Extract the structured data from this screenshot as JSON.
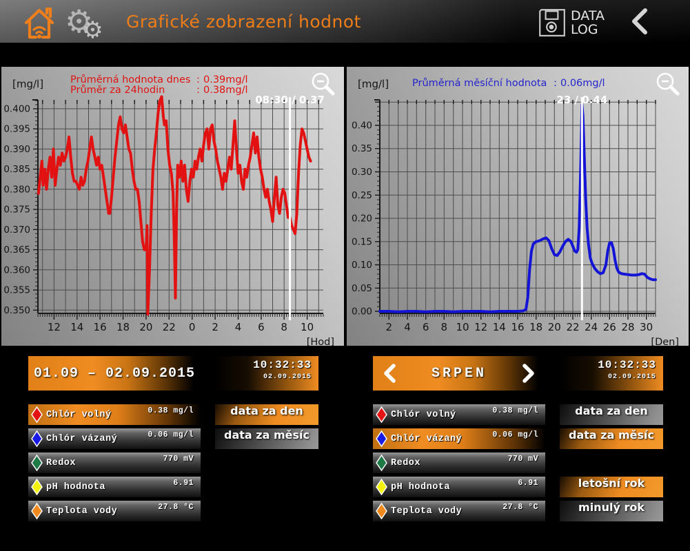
{
  "header": {
    "title": "Grafické zobrazení hodnot",
    "datalog_line1": "DATA",
    "datalog_line2": "LOG"
  },
  "colors": {
    "accent_orange": "#ef8c22",
    "daily_line": "#e31212",
    "monthly_line": "#1414d6"
  },
  "chart_data": [
    {
      "type": "line",
      "name": "daily-chlorine",
      "line_color": "#e31212",
      "annotation_color": "#e01313",
      "annotations": [
        {
          "label": "Průměrná hodnota dnes",
          "sep": ":",
          "value": "0.39mg/l"
        },
        {
          "label": "Průměr za 24hodin",
          "sep": ":",
          "value": "0.38mg/l"
        }
      ],
      "y_unit": "[mg/l]",
      "x_unit": "[Hod]",
      "xlim": [
        10.6,
        35.4
      ],
      "ylim": [
        0.3492,
        0.4022
      ],
      "xgrid_step": 1,
      "xminor": 0.2,
      "yminor": 0.001,
      "xticks": [
        [
          12,
          "12"
        ],
        [
          14,
          "14"
        ],
        [
          16,
          "16"
        ],
        [
          18,
          "18"
        ],
        [
          20,
          "20"
        ],
        [
          22,
          "22"
        ],
        [
          24,
          "0"
        ],
        [
          26,
          "2"
        ],
        [
          28,
          "4"
        ],
        [
          30,
          "6"
        ],
        [
          32,
          "8"
        ],
        [
          34,
          "10"
        ]
      ],
      "yticks": [
        [
          0.35,
          "0.350"
        ],
        [
          0.355,
          "0.355"
        ],
        [
          0.36,
          "0.360"
        ],
        [
          0.365,
          "0.365"
        ],
        [
          0.37,
          "0.370"
        ],
        [
          0.375,
          "0.375"
        ],
        [
          0.38,
          "0.380"
        ],
        [
          0.385,
          "0.385"
        ],
        [
          0.39,
          "0.390"
        ],
        [
          0.395,
          "0.395"
        ],
        [
          0.4,
          "0.400"
        ]
      ],
      "cursor": {
        "x": 32.5,
        "label": "08:30 / 0.37"
      },
      "marker": {
        "x": 20.15,
        "color": "#e31212"
      },
      "points": [
        [
          10.65,
          0.379
        ],
        [
          10.8,
          0.383
        ],
        [
          10.95,
          0.387
        ],
        [
          11.05,
          0.381
        ],
        [
          11.2,
          0.385
        ],
        [
          11.35,
          0.38
        ],
        [
          11.5,
          0.385
        ],
        [
          11.65,
          0.388
        ],
        [
          11.8,
          0.383
        ],
        [
          11.95,
          0.39
        ],
        [
          12.1,
          0.381
        ],
        [
          12.25,
          0.385
        ],
        [
          12.4,
          0.388
        ],
        [
          12.55,
          0.386
        ],
        [
          12.7,
          0.389
        ],
        [
          12.85,
          0.387
        ],
        [
          13.0,
          0.388
        ],
        [
          13.15,
          0.39
        ],
        [
          13.3,
          0.393
        ],
        [
          13.45,
          0.388
        ],
        [
          13.6,
          0.384
        ],
        [
          13.75,
          0.382
        ],
        [
          13.9,
          0.382
        ],
        [
          14.05,
          0.381
        ],
        [
          14.2,
          0.38
        ],
        [
          14.35,
          0.383
        ],
        [
          14.5,
          0.381
        ],
        [
          14.65,
          0.382
        ],
        [
          14.8,
          0.385
        ],
        [
          14.95,
          0.387
        ],
        [
          15.1,
          0.39
        ],
        [
          15.25,
          0.393
        ],
        [
          15.4,
          0.39
        ],
        [
          15.55,
          0.388
        ],
        [
          15.7,
          0.386
        ],
        [
          15.85,
          0.388
        ],
        [
          16.0,
          0.385
        ],
        [
          16.15,
          0.386
        ],
        [
          16.3,
          0.383
        ],
        [
          16.45,
          0.38
        ],
        [
          16.6,
          0.377
        ],
        [
          16.75,
          0.374
        ],
        [
          16.85,
          0.374
        ],
        [
          17.0,
          0.378
        ],
        [
          17.15,
          0.383
        ],
        [
          17.3,
          0.388
        ],
        [
          17.45,
          0.392
        ],
        [
          17.6,
          0.396
        ],
        [
          17.75,
          0.398
        ],
        [
          17.9,
          0.395
        ],
        [
          18.05,
          0.394
        ],
        [
          18.2,
          0.396
        ],
        [
          18.35,
          0.393
        ],
        [
          18.5,
          0.39
        ],
        [
          18.65,
          0.389
        ],
        [
          18.8,
          0.385
        ],
        [
          18.95,
          0.382
        ],
        [
          19.1,
          0.38
        ],
        [
          19.25,
          0.38
        ],
        [
          19.4,
          0.377
        ],
        [
          19.55,
          0.372
        ],
        [
          19.7,
          0.367
        ],
        [
          19.85,
          0.365
        ],
        [
          20.0,
          0.365
        ],
        [
          20.08,
          0.371
        ],
        [
          20.15,
          0.349
        ],
        [
          20.3,
          0.36
        ],
        [
          20.45,
          0.374
        ],
        [
          20.6,
          0.385
        ],
        [
          20.75,
          0.39
        ],
        [
          20.9,
          0.394
        ],
        [
          21.05,
          0.399
        ],
        [
          21.2,
          0.402
        ],
        [
          21.35,
          0.403
        ],
        [
          21.5,
          0.398
        ],
        [
          21.6,
          0.396
        ],
        [
          21.75,
          0.397
        ],
        [
          21.9,
          0.39
        ],
        [
          22.05,
          0.386
        ],
        [
          22.2,
          0.384
        ],
        [
          22.35,
          0.379
        ],
        [
          22.45,
          0.368
        ],
        [
          22.55,
          0.353
        ],
        [
          22.65,
          0.375
        ],
        [
          22.75,
          0.386
        ],
        [
          22.9,
          0.383
        ],
        [
          23.05,
          0.387
        ],
        [
          23.2,
          0.382
        ],
        [
          23.35,
          0.386
        ],
        [
          23.5,
          0.38
        ],
        [
          23.65,
          0.377
        ],
        [
          23.8,
          0.382
        ],
        [
          23.95,
          0.385
        ],
        [
          24.1,
          0.383
        ],
        [
          24.25,
          0.387
        ],
        [
          24.4,
          0.385
        ],
        [
          24.55,
          0.388
        ],
        [
          24.7,
          0.39
        ],
        [
          24.85,
          0.387
        ],
        [
          25.0,
          0.391
        ],
        [
          25.15,
          0.394
        ],
        [
          25.3,
          0.395
        ],
        [
          25.45,
          0.39
        ],
        [
          25.6,
          0.395
        ],
        [
          25.75,
          0.396
        ],
        [
          25.9,
          0.392
        ],
        [
          26.05,
          0.39
        ],
        [
          26.2,
          0.387
        ],
        [
          26.35,
          0.385
        ],
        [
          26.5,
          0.383
        ],
        [
          26.65,
          0.38
        ],
        [
          26.8,
          0.384
        ],
        [
          26.95,
          0.382
        ],
        [
          27.1,
          0.385
        ],
        [
          27.25,
          0.388
        ],
        [
          27.4,
          0.385
        ],
        [
          27.55,
          0.391
        ],
        [
          27.7,
          0.397
        ],
        [
          27.85,
          0.39
        ],
        [
          28.0,
          0.384
        ],
        [
          28.15,
          0.386
        ],
        [
          28.3,
          0.382
        ],
        [
          28.45,
          0.38
        ],
        [
          28.6,
          0.385
        ],
        [
          28.75,
          0.383
        ],
        [
          28.9,
          0.386
        ],
        [
          29.05,
          0.388
        ],
        [
          29.2,
          0.391
        ],
        [
          29.35,
          0.394
        ],
        [
          29.5,
          0.389
        ],
        [
          29.65,
          0.393
        ],
        [
          29.8,
          0.388
        ],
        [
          29.95,
          0.385
        ],
        [
          30.1,
          0.383
        ],
        [
          30.25,
          0.38
        ],
        [
          30.4,
          0.378
        ],
        [
          30.55,
          0.38
        ],
        [
          30.7,
          0.377
        ],
        [
          30.85,
          0.375
        ],
        [
          31.0,
          0.372
        ],
        [
          31.15,
          0.378
        ],
        [
          31.3,
          0.383
        ],
        [
          31.45,
          0.376
        ],
        [
          31.6,
          0.374
        ],
        [
          31.75,
          0.378
        ],
        [
          31.9,
          0.38
        ],
        [
          32.05,
          0.379
        ],
        [
          32.2,
          0.376
        ],
        [
          32.35,
          0.373
        ],
        [
          32.5,
          0.373
        ],
        [
          32.65,
          0.371
        ],
        [
          32.8,
          0.37
        ],
        [
          32.95,
          0.369
        ],
        [
          33.1,
          0.374
        ],
        [
          33.25,
          0.384
        ],
        [
          33.4,
          0.391
        ],
        [
          33.55,
          0.395
        ],
        [
          33.7,
          0.394
        ],
        [
          33.85,
          0.392
        ],
        [
          34.0,
          0.39
        ],
        [
          34.15,
          0.388
        ],
        [
          34.3,
          0.387
        ]
      ]
    },
    {
      "type": "line",
      "name": "monthly-chlorine",
      "line_color": "#1414d6",
      "annotation_color": "#2424cc",
      "annotations": [
        {
          "label": "Průměrná měsíční hodnota",
          "sep": ":",
          "value": "0.06mg/l"
        }
      ],
      "y_unit": "[mg/l]",
      "x_unit": "[Den]",
      "xlim": [
        1,
        31
      ],
      "ylim": [
        -0.0044,
        0.4548
      ],
      "xgrid_step": 1,
      "xminor": 0.25,
      "yminor": 0.01,
      "xticks": [
        [
          2,
          "2"
        ],
        [
          4,
          "4"
        ],
        [
          6,
          "6"
        ],
        [
          8,
          "8"
        ],
        [
          10,
          "10"
        ],
        [
          12,
          "12"
        ],
        [
          14,
          "14"
        ],
        [
          16,
          "16"
        ],
        [
          18,
          "18"
        ],
        [
          20,
          "20"
        ],
        [
          22,
          "22"
        ],
        [
          24,
          "24"
        ],
        [
          26,
          "26"
        ],
        [
          28,
          "28"
        ],
        [
          30,
          "30"
        ]
      ],
      "yticks": [
        [
          0.0,
          "0.00"
        ],
        [
          0.05,
          "0.05"
        ],
        [
          0.1,
          "0.10"
        ],
        [
          0.15,
          "0.15"
        ],
        [
          0.2,
          "0.20"
        ],
        [
          0.25,
          "0.25"
        ],
        [
          0.3,
          "0.30"
        ],
        [
          0.35,
          "0.35"
        ],
        [
          0.4,
          "0.40"
        ],
        [
          0.45,
          ""
        ]
      ],
      "cursor": {
        "x": 23,
        "label": "23 / 0.44"
      },
      "points": [
        [
          1,
          0.0
        ],
        [
          2,
          0.0
        ],
        [
          3,
          -0.001
        ],
        [
          4,
          0.0
        ],
        [
          5,
          0.0
        ],
        [
          6,
          -0.001
        ],
        [
          7,
          0.0
        ],
        [
          8,
          0.0
        ],
        [
          9,
          -0.001
        ],
        [
          10,
          0.0
        ],
        [
          11,
          0.0
        ],
        [
          12,
          0.0
        ],
        [
          13,
          -0.001
        ],
        [
          14,
          0.0
        ],
        [
          15,
          0.0
        ],
        [
          16,
          0.0
        ],
        [
          16.6,
          0.001
        ],
        [
          16.9,
          0.004
        ],
        [
          17.1,
          0.03
        ],
        [
          17.3,
          0.09
        ],
        [
          17.5,
          0.13
        ],
        [
          17.7,
          0.145
        ],
        [
          18.0,
          0.15
        ],
        [
          18.4,
          0.152
        ],
        [
          18.8,
          0.156
        ],
        [
          19.1,
          0.158
        ],
        [
          19.4,
          0.152
        ],
        [
          19.7,
          0.135
        ],
        [
          20.0,
          0.122
        ],
        [
          20.3,
          0.12
        ],
        [
          20.6,
          0.128
        ],
        [
          20.9,
          0.14
        ],
        [
          21.2,
          0.15
        ],
        [
          21.5,
          0.155
        ],
        [
          21.8,
          0.15
        ],
        [
          22.0,
          0.14
        ],
        [
          22.2,
          0.13
        ],
        [
          22.4,
          0.127
        ],
        [
          22.55,
          0.133
        ],
        [
          22.7,
          0.18
        ],
        [
          22.85,
          0.3
        ],
        [
          23.0,
          0.445
        ],
        [
          23.1,
          0.42
        ],
        [
          23.25,
          0.33
        ],
        [
          23.4,
          0.24
        ],
        [
          23.55,
          0.18
        ],
        [
          23.7,
          0.145
        ],
        [
          23.9,
          0.115
        ],
        [
          24.1,
          0.103
        ],
        [
          24.4,
          0.092
        ],
        [
          24.7,
          0.085
        ],
        [
          25.0,
          0.081
        ],
        [
          25.3,
          0.083
        ],
        [
          25.6,
          0.1
        ],
        [
          25.8,
          0.13
        ],
        [
          26.0,
          0.147
        ],
        [
          26.2,
          0.148
        ],
        [
          26.4,
          0.135
        ],
        [
          26.6,
          0.11
        ],
        [
          26.8,
          0.092
        ],
        [
          27.0,
          0.084
        ],
        [
          27.3,
          0.081
        ],
        [
          27.6,
          0.08
        ],
        [
          28.0,
          0.079
        ],
        [
          28.4,
          0.078
        ],
        [
          28.8,
          0.078
        ],
        [
          29.2,
          0.079
        ],
        [
          29.5,
          0.081
        ],
        [
          29.8,
          0.08
        ],
        [
          30.1,
          0.073
        ],
        [
          30.4,
          0.07
        ],
        [
          30.7,
          0.068
        ],
        [
          31.0,
          0.068
        ]
      ]
    }
  ],
  "left_panel": {
    "date_range": "01.09 – 02.09.2015",
    "clock": {
      "time": "10:32:33",
      "date": "02.09.2015"
    },
    "rows": [
      {
        "label": "Chlór volný",
        "value": "0.38 mg/l",
        "diamond": "#e41414",
        "selected": true
      },
      {
        "label": "Chlór vázaný",
        "value": "0.06 mg/l",
        "diamond": "#1a1ae6",
        "selected": false
      },
      {
        "label": "Redox",
        "value": "770 mV",
        "diamond": "#1e7a46",
        "selected": false
      },
      {
        "label": "pH hodnota",
        "value": "6.91",
        "diamond": "#f2f20c",
        "selected": false
      },
      {
        "label": "Teplota vody",
        "value": "27.8 °C",
        "diamond": "#f08a1e",
        "selected": false
      }
    ],
    "buttons": [
      {
        "label": "data za den",
        "active": true
      },
      {
        "label": "data za měsíc",
        "active": false
      }
    ]
  },
  "right_panel": {
    "month": "SRPEN",
    "clock": {
      "time": "10:32:33",
      "date": "02.09.2015"
    },
    "rows": [
      {
        "label": "Chlór volný",
        "value": "0.38 mg/l",
        "diamond": "#e41414",
        "selected": false
      },
      {
        "label": "Chlór vázaný",
        "value": "0.06 mg/l",
        "diamond": "#1a1ae6",
        "selected": true
      },
      {
        "label": "Redox",
        "value": "770 mV",
        "diamond": "#1e7a46",
        "selected": false
      },
      {
        "label": "pH hodnota",
        "value": "6.91",
        "diamond": "#f2f20c",
        "selected": false
      },
      {
        "label": "Teplota vody",
        "value": "27.8 °C",
        "diamond": "#f08a1e",
        "selected": false
      }
    ],
    "buttons": [
      {
        "label": "data za den",
        "active": false
      },
      {
        "label": "data za měsíc",
        "active": true
      }
    ],
    "year_buttons": [
      {
        "label": "letošní rok",
        "active": true
      },
      {
        "label": "minulý rok",
        "active": false
      }
    ]
  }
}
